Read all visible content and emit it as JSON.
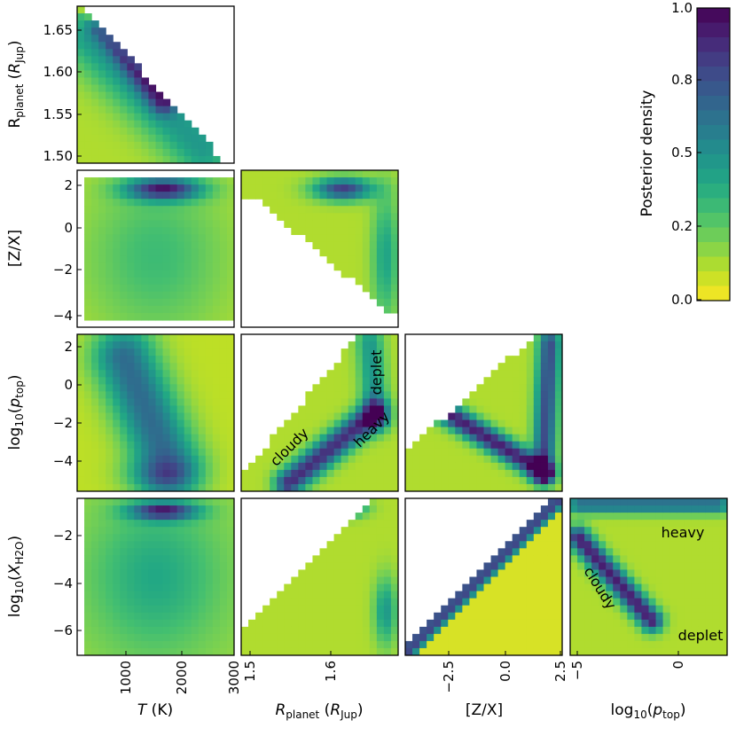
{
  "chart_data": {
    "type": "heatmap",
    "kind": "corner plot (2D posterior density contours)",
    "parameters": [
      {
        "key": "T",
        "label": "T (K)",
        "range": [
          0,
          3000
        ]
      },
      {
        "key": "R",
        "label": "R_planet (R_Jup)",
        "range": [
          1.49,
          1.675
        ]
      },
      {
        "key": "ZX",
        "label": "[Z/X]",
        "range": [
          -4.5,
          2.5
        ]
      },
      {
        "key": "ptop",
        "label": "log10(p_top)",
        "range": [
          -5.5,
          2.5
        ]
      },
      {
        "key": "XH2O",
        "label": "log10(X_H2O)",
        "range": [
          -7,
          -0.7
        ]
      }
    ],
    "row_labels": [
      {
        "pre": "R",
        "sub": "planet",
        "post": " (",
        "it": "R",
        "sub2": "Jup",
        "end": ")"
      },
      {
        "text": "[Z/X]"
      },
      {
        "pre": "log",
        "sub": "10",
        "post": "(",
        "it": "p",
        "sub2": "top",
        "end": ")"
      },
      {
        "pre": "log",
        "sub": "10",
        "post": "(",
        "it": "X",
        "sub2": "H2O",
        "end": ")"
      }
    ],
    "col_labels": [
      {
        "it": "T",
        "post": " (K)"
      },
      {
        "it": "R",
        "sub": "planet",
        "post": " (",
        "it2": "R",
        "sub2": "Jup",
        "end": ")"
      },
      {
        "text": "[Z/X]"
      },
      {
        "pre": "log",
        "sub": "10",
        "post": "(",
        "it": "p",
        "sub2": "top",
        "end": ")"
      }
    ],
    "row_ticks": [
      [
        "1.50",
        "1.55",
        "1.60",
        "1.65"
      ],
      [
        "−4",
        "−2",
        "0",
        "2"
      ],
      [
        "−4",
        "−2",
        "0",
        "2"
      ],
      [
        "−6",
        "−4",
        "−2"
      ]
    ],
    "col_ticks": [
      [
        "1000",
        "2000",
        "3000"
      ],
      [
        "1.5",
        "1.6"
      ],
      [
        "−2.5",
        "0.0",
        "2.5"
      ],
      [
        "−5",
        "0"
      ]
    ],
    "annotations": [
      {
        "panel": "R-ptop",
        "text": "deplet"
      },
      {
        "panel": "R-ptop",
        "text": "cloudy"
      },
      {
        "panel": "R-ptop",
        "text": "heavy"
      },
      {
        "panel": "ptop-XH2O",
        "text": "heavy"
      },
      {
        "panel": "ptop-XH2O",
        "text": "cloudy"
      },
      {
        "panel": "ptop-XH2O",
        "text": "deplet"
      }
    ],
    "colorbar": {
      "label": "Posterior density",
      "range": [
        0.0,
        1.0
      ],
      "ticks": [
        "0.0",
        "0.2",
        "0.5",
        "0.8",
        "1.0"
      ],
      "colormap": "viridis_r"
    }
  }
}
